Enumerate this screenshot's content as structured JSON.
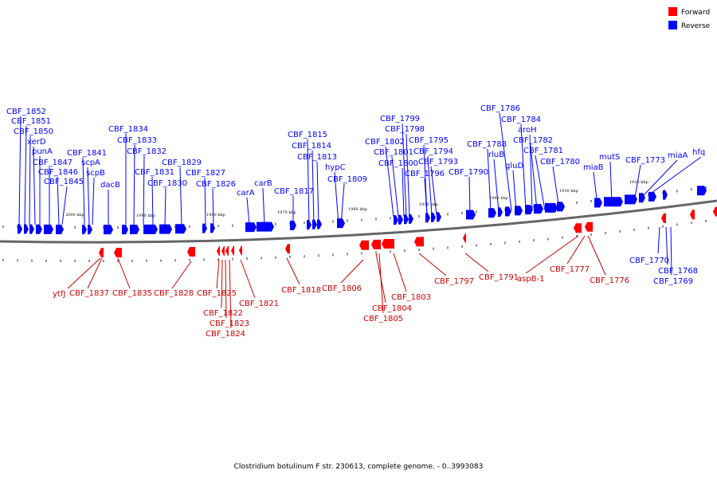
{
  "legend": {
    "forward": {
      "label": "Forward",
      "color": "#ff0000"
    },
    "reverse": {
      "label": "Reverse",
      "color": "#0000ff"
    }
  },
  "caption": "Clostridium botulinum F str. 230613, complete genome. - 0..3993083",
  "scale_labels": [
    "2000 kbp",
    "1990 kbp",
    "1980 kbp",
    "1970 kbp",
    "1960 kbp",
    "1950 kbp",
    "1940 kbp",
    "1930 kbp",
    "1920 kbp"
  ],
  "reverse_genes": [
    "CBF_1852",
    "CBF_1851",
    "CBF_1850",
    "xerD",
    "punA",
    "CBF_1847",
    "CBF_1846",
    "CBF_1845",
    "CBF_1841",
    "scpA",
    "scpB",
    "dacB",
    "CBF_1834",
    "CBF_1833",
    "CBF_1832",
    "CBF_1831",
    "CBF_1830",
    "CBF_1829",
    "CBF_1827",
    "CBF_1826",
    "carA",
    "carB",
    "CBF_1817",
    "CBF_1815",
    "CBF_1814",
    "CBF_1813",
    "hypC",
    "CBF_1809",
    "CBF_1802",
    "CBF_1801",
    "CBF_1800",
    "CBF_1799",
    "CBF_1798",
    "CBF_1795",
    "CBF_1794",
    "CBF_1793",
    "CBF_1796",
    "CBF_1790",
    "CBF_1788",
    "rluB",
    "gluD",
    "CBF_1786",
    "CBF_1784",
    "aroH",
    "CBF_1782",
    "CBF_1781",
    "CBF_1780",
    "miaB",
    "mutS",
    "CBF_1773",
    "miaA",
    "hfq",
    "CBF_1770",
    "CBF_1768",
    "CBF_1769"
  ],
  "forward_genes": [
    "ytfJ",
    "CBF_1837",
    "CBF_1835",
    "CBF_1828",
    "CBF_1825",
    "CBF_1822",
    "CBF_1823",
    "CBF_1824",
    "CBF_1821",
    "CBF_1818",
    "CBF_1806",
    "CBF_1804",
    "CBF_1805",
    "CBF_1803",
    "CBF_1797",
    "CBF_1791",
    "aspB-1",
    "CBF_1777",
    "CBF_1776"
  ]
}
